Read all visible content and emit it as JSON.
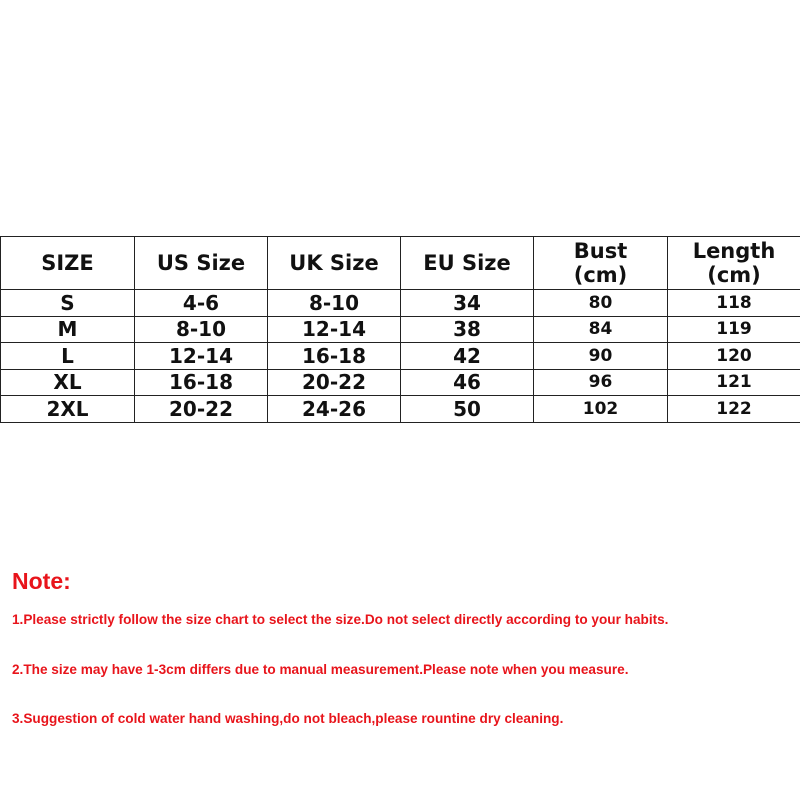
{
  "table": {
    "headers": [
      "SIZE",
      "US Size",
      "UK Size",
      "EU Size",
      "Bust (cm)",
      "Length (cm)"
    ],
    "rows": [
      [
        "S",
        "4-6",
        "8-10",
        "34",
        "80",
        "118"
      ],
      [
        "M",
        "8-10",
        "12-14",
        "38",
        "84",
        "119"
      ],
      [
        "L",
        "12-14",
        "16-18",
        "42",
        "90",
        "120"
      ],
      [
        "XL",
        "16-18",
        "20-22",
        "46",
        "96",
        "121"
      ],
      [
        "2XL",
        "20-22",
        "24-26",
        "50",
        "102",
        "122"
      ]
    ]
  },
  "notes": {
    "title": "Note:",
    "color": "#e8141b",
    "items": [
      "1.Please strictly follow the size chart to select the size.Do not select directly according to your habits.",
      "2.The size may have 1-3cm differs due to manual measurement.Please note when you measure.",
      "3.Suggestion of cold water hand washing,do not bleach,please rountine dry cleaning."
    ]
  }
}
